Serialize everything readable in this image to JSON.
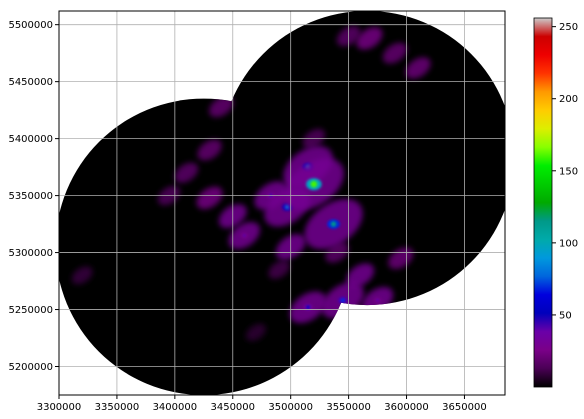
{
  "chart_data": {
    "type": "heatmap",
    "title": "",
    "xlabel": "",
    "ylabel": "",
    "xlim": [
      3300000,
      3685000
    ],
    "ylim": [
      5175000,
      5512000
    ],
    "x_ticks": [
      "3300000",
      "3350000",
      "3400000",
      "3450000",
      "3500000",
      "3550000",
      "3600000",
      "3650000"
    ],
    "y_ticks": [
      "5200000",
      "5250000",
      "5300000",
      "5350000",
      "5400000",
      "5450000",
      "5500000"
    ],
    "x_tick_values": [
      3300000,
      3350000,
      3400000,
      3450000,
      3500000,
      3550000,
      3600000,
      3650000
    ],
    "y_tick_values": [
      5200000,
      5250000,
      5300000,
      5350000,
      5400000,
      5450000,
      5500000
    ],
    "grid": true,
    "coverage_discs": [
      {
        "center_x": 3425000,
        "center_y": 5305000,
        "radius": 128000
      },
      {
        "center_x": 3566000,
        "center_y": 5383000,
        "radius": 127000
      }
    ],
    "colorbar": {
      "colormap": "nipy_spectral",
      "range": [
        0,
        256
      ],
      "ticks": [
        "50",
        "100",
        "150",
        "200",
        "250"
      ],
      "tick_values": [
        50,
        100,
        150,
        200,
        250
      ]
    },
    "features": [
      {
        "x": 3520000,
        "y": 5360000,
        "value": 160
      },
      {
        "x": 3515000,
        "y": 5375000,
        "value": 90
      },
      {
        "x": 3537000,
        "y": 5325000,
        "value": 115
      },
      {
        "x": 3497000,
        "y": 5340000,
        "value": 80
      },
      {
        "x": 3483000,
        "y": 5350000,
        "value": 45
      },
      {
        "x": 3460000,
        "y": 5315000,
        "value": 40
      },
      {
        "x": 3500000,
        "y": 5305000,
        "value": 35
      },
      {
        "x": 3450000,
        "y": 5332000,
        "value": 30
      },
      {
        "x": 3430000,
        "y": 5348000,
        "value": 25
      },
      {
        "x": 3545000,
        "y": 5258000,
        "value": 70
      },
      {
        "x": 3515000,
        "y": 5252000,
        "value": 55
      },
      {
        "x": 3575000,
        "y": 5258000,
        "value": 40
      },
      {
        "x": 3560000,
        "y": 5280000,
        "value": 30
      },
      {
        "x": 3595000,
        "y": 5295000,
        "value": 22
      },
      {
        "x": 3568000,
        "y": 5488000,
        "value": 25
      },
      {
        "x": 3610000,
        "y": 5462000,
        "value": 22
      },
      {
        "x": 3590000,
        "y": 5475000,
        "value": 20
      },
      {
        "x": 3550000,
        "y": 5490000,
        "value": 18
      },
      {
        "x": 3440000,
        "y": 5428000,
        "value": 20
      },
      {
        "x": 3430000,
        "y": 5390000,
        "value": 20
      },
      {
        "x": 3410000,
        "y": 5370000,
        "value": 18
      },
      {
        "x": 3395000,
        "y": 5350000,
        "value": 15
      },
      {
        "x": 3320000,
        "y": 5280000,
        "value": 10
      },
      {
        "x": 3490000,
        "y": 5285000,
        "value": 12
      },
      {
        "x": 3540000,
        "y": 5300000,
        "value": 18
      },
      {
        "x": 3470000,
        "y": 5230000,
        "value": 8
      },
      {
        "x": 3520000,
        "y": 5400000,
        "value": 15
      }
    ]
  }
}
